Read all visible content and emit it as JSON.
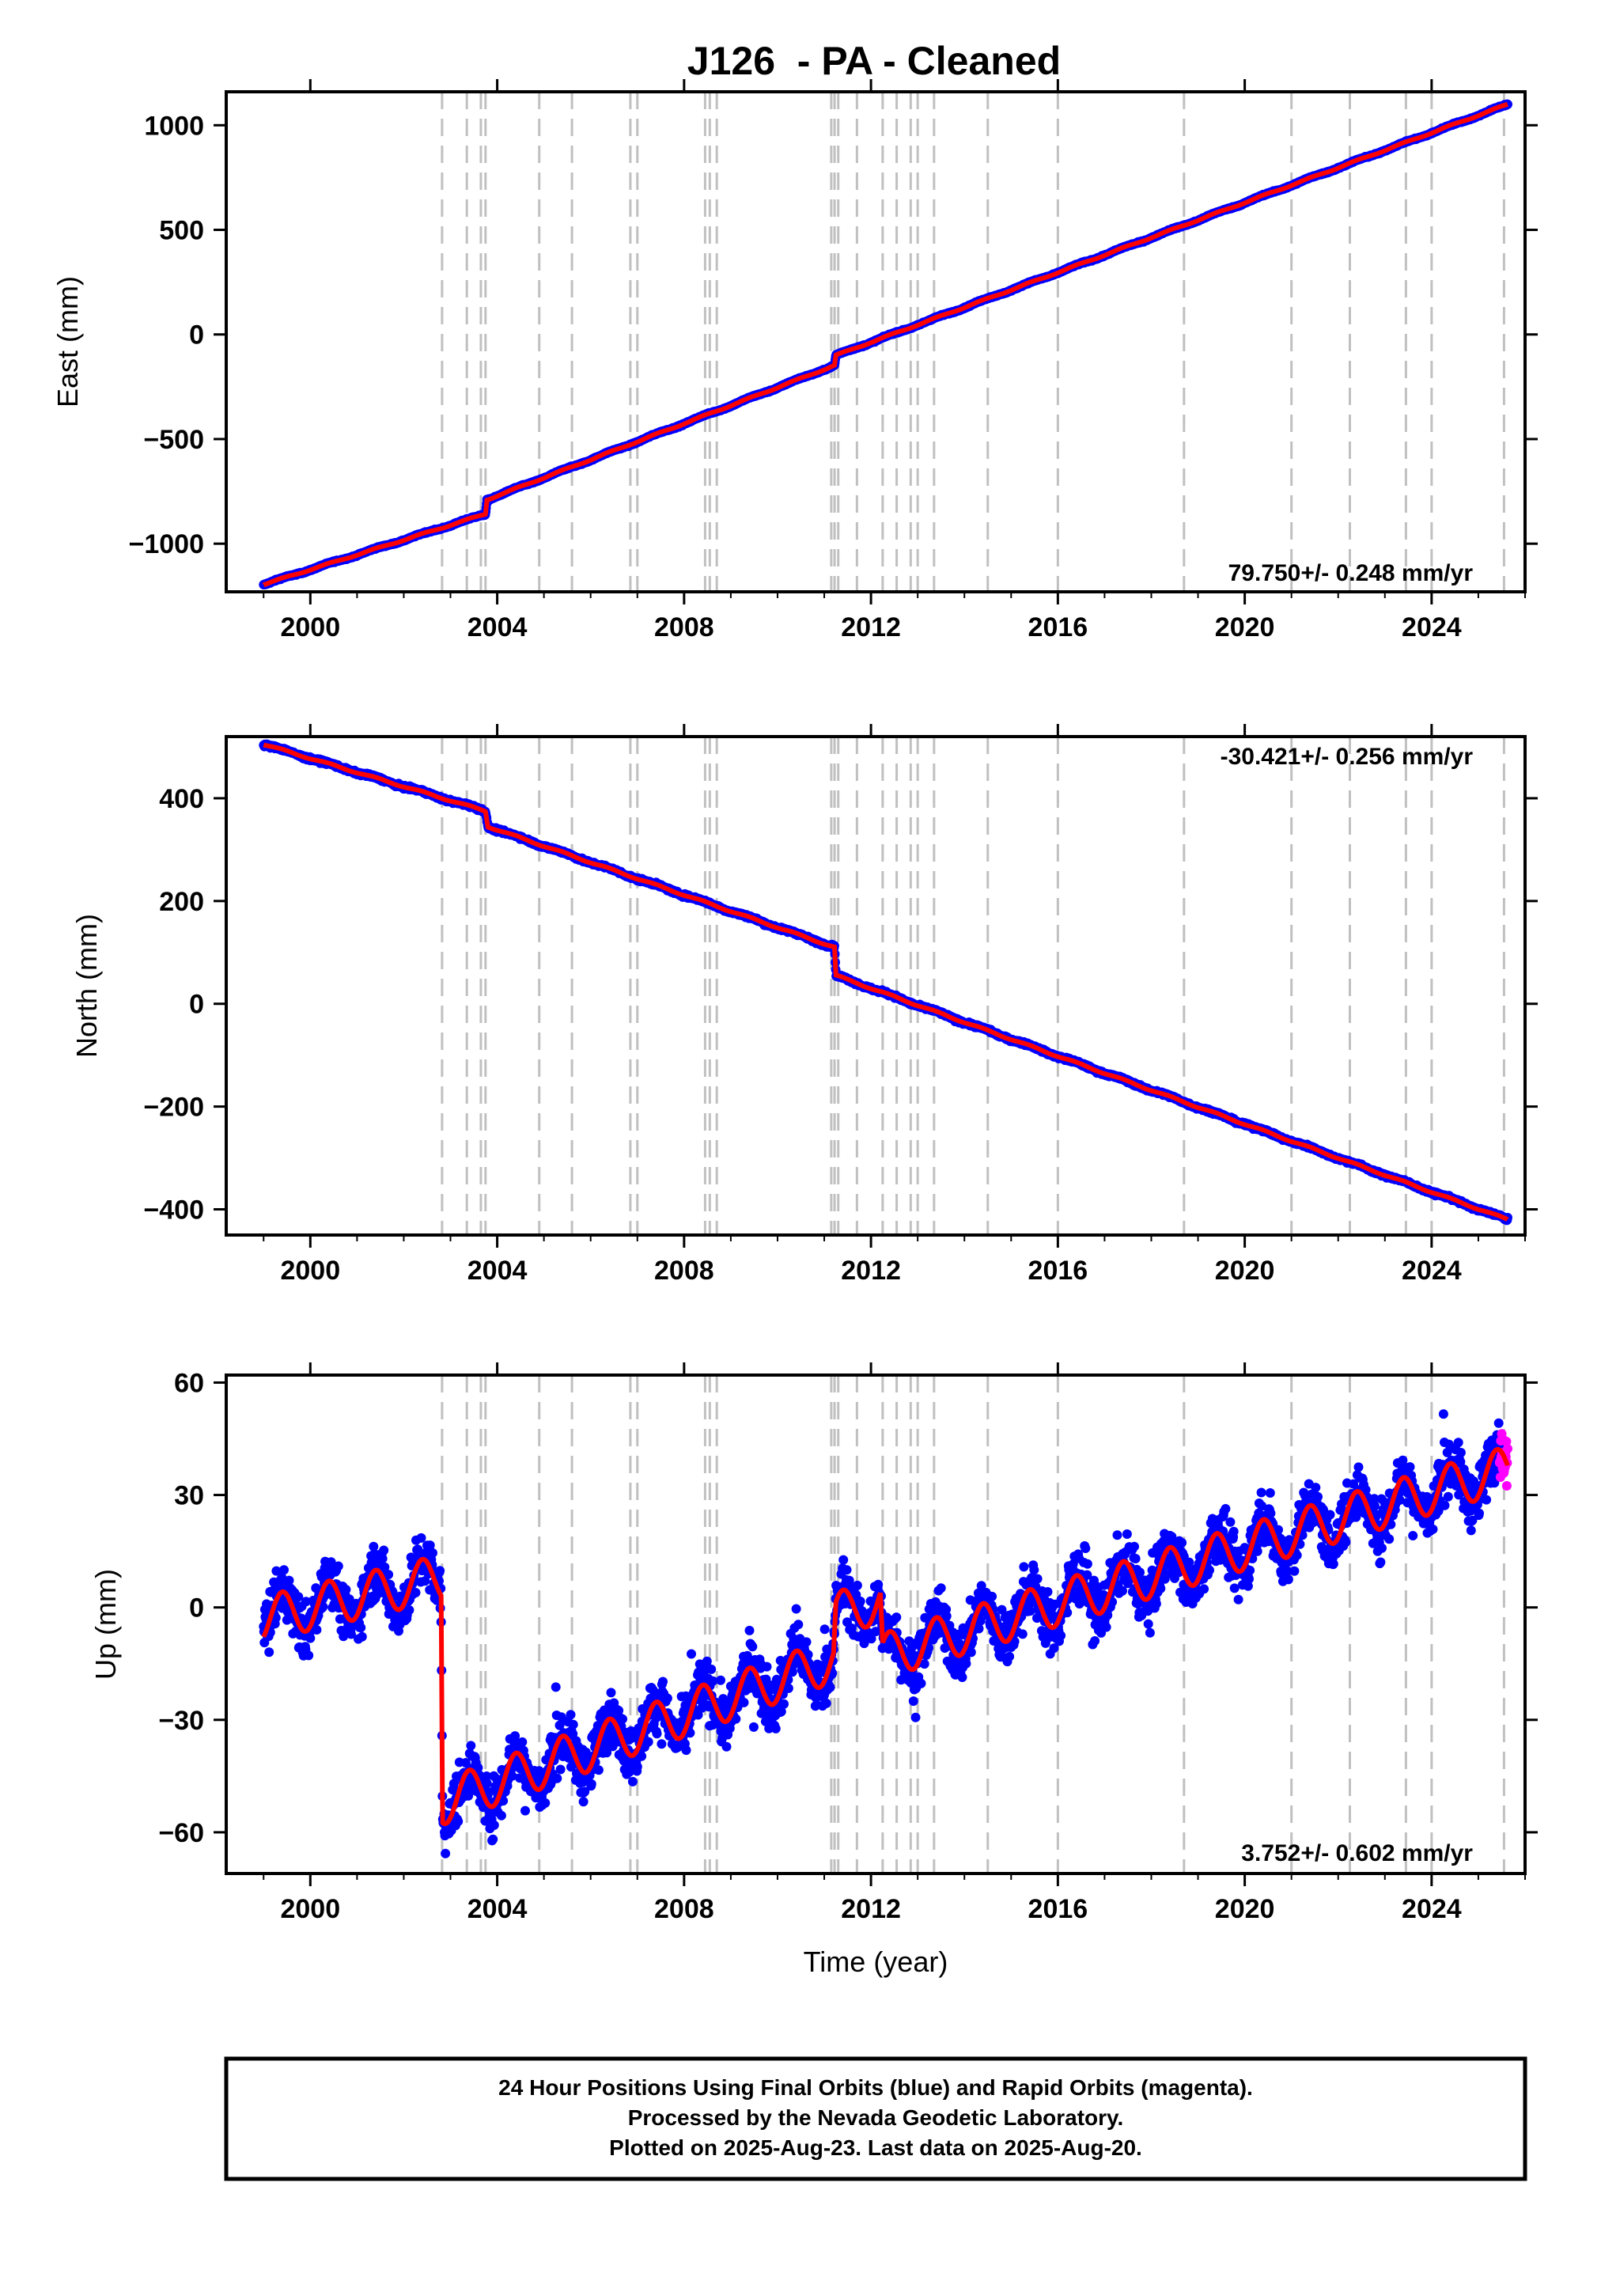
{
  "figure": {
    "title": "J126  - PA - Cleaned",
    "xlabel": "Time (year)",
    "colors": {
      "final_points": "#0000ff",
      "rapid_points": "#ff00ff",
      "model_line": "#ff0000",
      "event_lines": "#c0c0c0"
    },
    "footer": {
      "line1": "24 Hour Positions Using Final Orbits (blue) and Rapid Orbits (magenta).",
      "line2": "Processed by the Nevada Geodetic Laboratory.",
      "line3": "Plotted on 2025-Aug-23. Last data on 2025-Aug-20."
    }
  },
  "chart_data": [
    {
      "type": "scatter",
      "component": "east",
      "ylabel": "East (mm)",
      "rate": "79.750+/- 0.248 mm/yr",
      "rate_position": "bottom-right",
      "xlim": [
        1998.2,
        2026.0
      ],
      "ylim": [
        -1230,
        1160
      ],
      "x_ticks": [
        2000,
        2004,
        2008,
        2012,
        2016,
        2020,
        2024
      ],
      "y_ticks": [
        1000,
        500,
        0,
        -500,
        -1000
      ],
      "y_tick_labels": [
        "1000",
        "500",
        "0",
        "−500",
        "−1000"
      ],
      "grid": false,
      "data_start": 1999.0,
      "data_end": 2025.63,
      "anchors": [
        [
          1999.0,
          -1195
        ],
        [
          2003.75,
          -858
        ],
        [
          2003.78,
          -790
        ],
        [
          2011.22,
          -148
        ],
        [
          2011.25,
          -100
        ],
        [
          2025.63,
          1100
        ]
      ],
      "seasonal_amplitude": 3,
      "noise": 3
    },
    {
      "type": "scatter",
      "component": "north",
      "ylabel": "North (mm)",
      "rate": "-30.421+/- 0.256 mm/yr",
      "rate_position": "top-right",
      "xlim": [
        1998.2,
        2026.0
      ],
      "ylim": [
        -450,
        520
      ],
      "x_ticks": [
        2000,
        2004,
        2008,
        2012,
        2016,
        2020,
        2024
      ],
      "y_ticks": [
        400,
        200,
        0,
        -200,
        -400
      ],
      "y_tick_labels": [
        "400",
        "200",
        "0",
        "−200",
        "−400"
      ],
      "grid": false,
      "data_start": 1999.0,
      "data_end": 2025.63,
      "anchors": [
        [
          1999.0,
          505
        ],
        [
          2003.75,
          375
        ],
        [
          2003.8,
          345
        ],
        [
          2011.22,
          110
        ],
        [
          2011.25,
          55
        ],
        [
          2025.63,
          -420
        ]
      ],
      "seasonal_amplitude": 1.5,
      "noise": 3
    },
    {
      "type": "scatter",
      "component": "up",
      "ylabel": "Up (mm)",
      "rate": "3.752+/- 0.602 mm/yr",
      "rate_position": "bottom-right",
      "xlim": [
        1998.2,
        2026.0
      ],
      "ylim": [
        -71,
        62
      ],
      "x_ticks": [
        2000,
        2004,
        2008,
        2012,
        2016,
        2020,
        2024
      ],
      "y_ticks": [
        60,
        30,
        0,
        -30,
        -60
      ],
      "y_tick_labels": [
        "60",
        "30",
        "0",
        "−30",
        "−60"
      ],
      "grid": false,
      "data_start": 1999.0,
      "data_end": 2025.63,
      "anchors": [
        [
          1999.0,
          -3
        ],
        [
          2002.8,
          8
        ],
        [
          2002.83,
          -52
        ],
        [
          2011.2,
          -14
        ],
        [
          2011.25,
          -2
        ],
        [
          2012.2,
          2
        ],
        [
          2012.25,
          -13
        ],
        [
          2025.63,
          37
        ]
      ],
      "seasonal_amplitude": 6,
      "noise": 7,
      "rapid_start": 2025.45
    }
  ],
  "event_lines": [
    2002.82,
    2003.35,
    2003.65,
    2003.75,
    2004.9,
    2005.6,
    2006.85,
    2007.0,
    2008.45,
    2008.55,
    2008.7,
    2011.15,
    2011.22,
    2011.3,
    2011.7,
    2012.25,
    2012.55,
    2012.85,
    2013.0,
    2013.35,
    2014.5,
    2016.0,
    2018.7,
    2021.0,
    2022.25,
    2023.45,
    2024.0,
    2025.55
  ]
}
